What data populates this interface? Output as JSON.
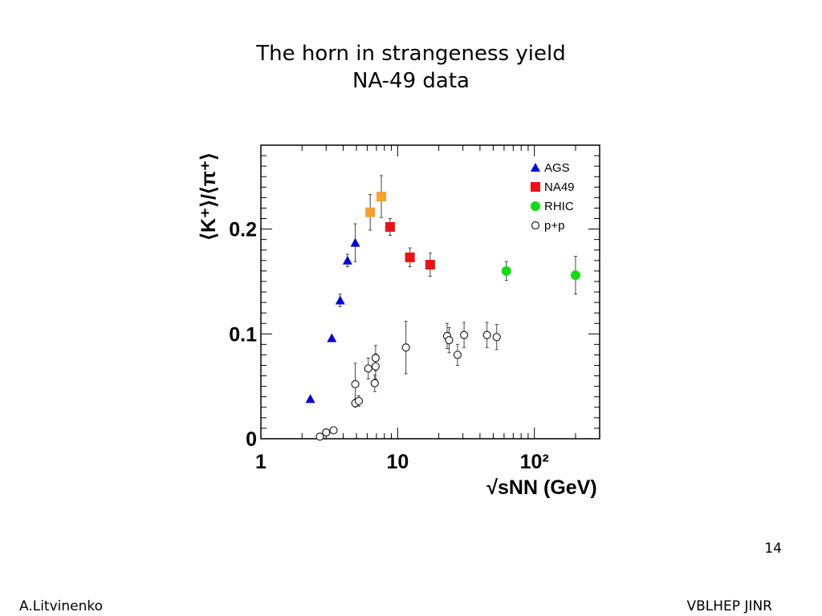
{
  "slide": {
    "title_line1": "The horn in strangeness yield",
    "title_line2": "NA-49 data",
    "page_number": "14",
    "footer_left": "A.Litvinenko",
    "footer_right": "VBLHEP JINR"
  },
  "chart_data": {
    "type": "scatter",
    "x_scale": "log",
    "xlim": [
      1,
      300
    ],
    "ylim": [
      0,
      0.28
    ],
    "xlabel": "√sNN (GeV)",
    "ylabel": "⟨K⁺⟩/⟨π⁺⟩",
    "x_ticks": [
      {
        "value": 1,
        "label": "1"
      },
      {
        "value": 10,
        "label": "10"
      },
      {
        "value": 100,
        "label": "10²"
      }
    ],
    "y_ticks": [
      {
        "value": 0,
        "label": "0"
      },
      {
        "value": 0.1,
        "label": "0.1"
      },
      {
        "value": 0.2,
        "label": "0.2"
      }
    ],
    "legend_position": "top-right",
    "series": [
      {
        "name": "AGS",
        "marker": "triangle",
        "color": "#0000dd",
        "points": [
          {
            "x": 2.3,
            "y": 0.038,
            "err": 0.0
          },
          {
            "x": 3.3,
            "y": 0.096,
            "err": 0.0
          },
          {
            "x": 3.8,
            "y": 0.132,
            "err": 0.006
          },
          {
            "x": 4.3,
            "y": 0.17,
            "err": 0.006
          },
          {
            "x": 4.9,
            "y": 0.187,
            "err": 0.018
          }
        ]
      },
      {
        "name": "NA49",
        "marker": "square",
        "color": "#ee1111",
        "points": [
          {
            "x": 6.3,
            "y": 0.216,
            "err": 0.017,
            "color": "#f5a030"
          },
          {
            "x": 7.6,
            "y": 0.231,
            "err": 0.02,
            "color": "#f5a030"
          },
          {
            "x": 8.8,
            "y": 0.202,
            "err": 0.008
          },
          {
            "x": 12.3,
            "y": 0.173,
            "err": 0.009
          },
          {
            "x": 17.3,
            "y": 0.166,
            "err": 0.011
          }
        ]
      },
      {
        "name": "RHIC",
        "marker": "circle",
        "color": "#11dd11",
        "points": [
          {
            "x": 62.4,
            "y": 0.16,
            "err": 0.009
          },
          {
            "x": 200,
            "y": 0.156,
            "err": 0.018
          }
        ]
      },
      {
        "name": "p+p",
        "marker": "open-circle",
        "color": "#222222",
        "points": [
          {
            "x": 2.7,
            "y": 0.002,
            "err": 0.0
          },
          {
            "x": 3.0,
            "y": 0.006,
            "err": 0.0
          },
          {
            "x": 3.4,
            "y": 0.008,
            "err": 0.0
          },
          {
            "x": 4.9,
            "y": 0.052,
            "err": 0.02
          },
          {
            "x": 4.9,
            "y": 0.034,
            "err": 0.004
          },
          {
            "x": 5.2,
            "y": 0.036,
            "err": 0.005
          },
          {
            "x": 6.1,
            "y": 0.067,
            "err": 0.01
          },
          {
            "x": 6.8,
            "y": 0.053,
            "err": 0.008
          },
          {
            "x": 6.9,
            "y": 0.069,
            "err": 0.012
          },
          {
            "x": 6.9,
            "y": 0.077,
            "err": 0.012
          },
          {
            "x": 11.5,
            "y": 0.087,
            "err": 0.025
          },
          {
            "x": 23.0,
            "y": 0.098,
            "err": 0.012
          },
          {
            "x": 23.8,
            "y": 0.094,
            "err": 0.012
          },
          {
            "x": 27.4,
            "y": 0.08,
            "err": 0.01
          },
          {
            "x": 30.6,
            "y": 0.099,
            "err": 0.012
          },
          {
            "x": 45.0,
            "y": 0.099,
            "err": 0.012
          },
          {
            "x": 53.0,
            "y": 0.097,
            "err": 0.012
          }
        ]
      }
    ]
  }
}
